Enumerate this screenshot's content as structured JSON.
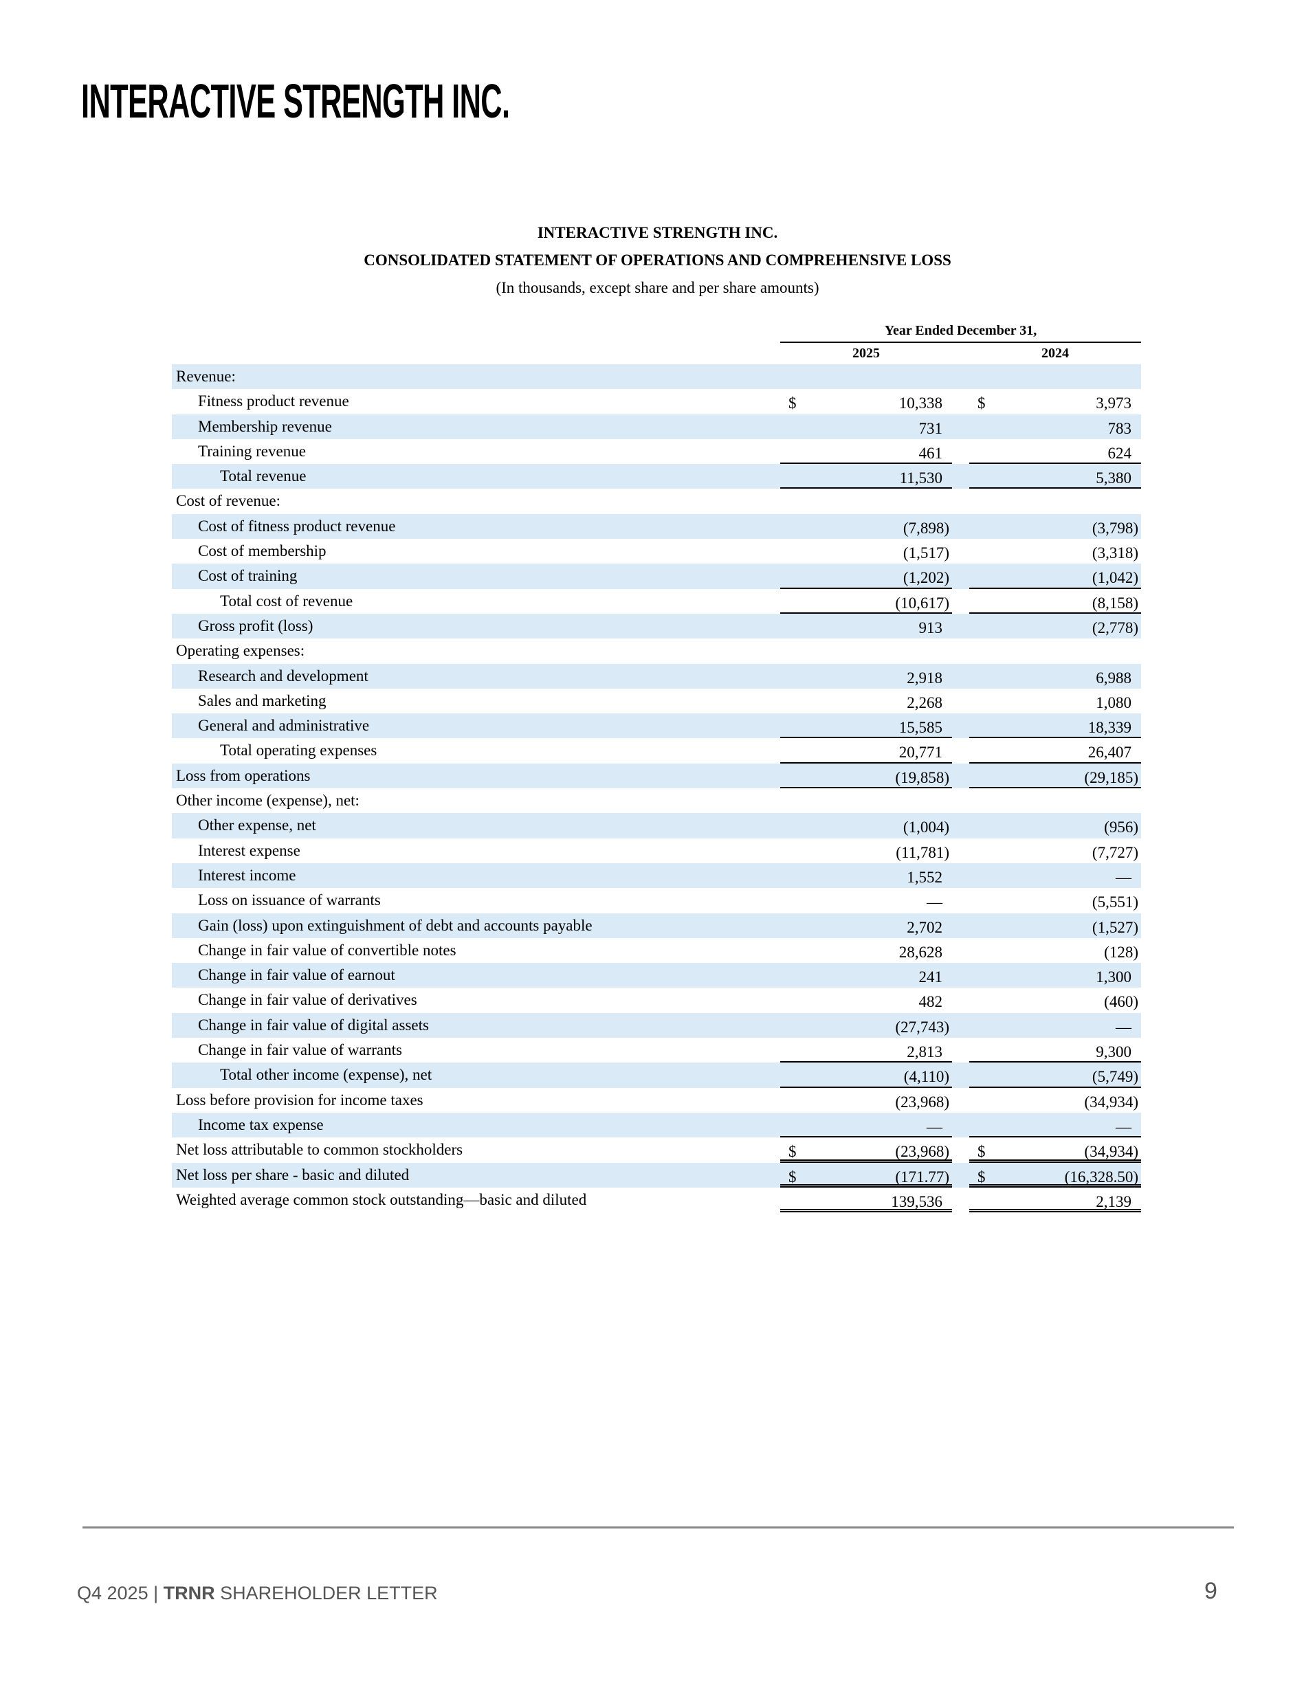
{
  "logo_text": "INTERACTIVE STRENGTH INC.",
  "title": {
    "company": "INTERACTIVE STRENGTH INC.",
    "statement": "CONSOLIDATED STATEMENT OF OPERATIONS AND COMPREHENSIVE LOSS",
    "units": "(In thousands, except share and per share amounts)"
  },
  "header": {
    "period": "Year Ended December 31,",
    "col1": "2025",
    "col2": "2024"
  },
  "rows": [
    {
      "label": "Revenue:",
      "indent": 0,
      "v1": "",
      "v2": ""
    },
    {
      "label": "Fitness product revenue",
      "indent": 1,
      "dollar": true,
      "v1": "10,338",
      "v2": "3,973"
    },
    {
      "label": "Membership revenue",
      "indent": 1,
      "v1": "731",
      "v2": "783"
    },
    {
      "label": "Training revenue",
      "indent": 1,
      "v1": "461",
      "v2": "624",
      "border": "b1"
    },
    {
      "label": "Total revenue",
      "indent": 2,
      "v1": "11,530",
      "v2": "5,380",
      "border": "b1"
    },
    {
      "label": "Cost of revenue:",
      "indent": 0,
      "v1": "",
      "v2": ""
    },
    {
      "label": "Cost of fitness product revenue",
      "indent": 1,
      "v1": "(7,898)",
      "v2": "(3,798)"
    },
    {
      "label": "Cost of membership",
      "indent": 1,
      "v1": "(1,517)",
      "v2": "(3,318)"
    },
    {
      "label": "Cost of training",
      "indent": 1,
      "v1": "(1,202)",
      "v2": "(1,042)",
      "border": "b1"
    },
    {
      "label": "Total cost of revenue",
      "indent": 2,
      "v1": "(10,617)",
      "v2": "(8,158)",
      "border": "b1"
    },
    {
      "label": "Gross profit (loss)",
      "indent": 1,
      "v1": "913",
      "v2": "(2,778)"
    },
    {
      "label": "Operating expenses:",
      "indent": 0,
      "v1": "",
      "v2": ""
    },
    {
      "label": "Research and development",
      "indent": 1,
      "v1": "2,918",
      "v2": "6,988"
    },
    {
      "label": "Sales and marketing",
      "indent": 1,
      "v1": "2,268",
      "v2": "1,080"
    },
    {
      "label": "General and administrative",
      "indent": 1,
      "v1": "15,585",
      "v2": "18,339",
      "border": "b1"
    },
    {
      "label": "Total operating expenses",
      "indent": 2,
      "v1": "20,771",
      "v2": "26,407",
      "border": "b1"
    },
    {
      "label": "Loss from operations",
      "indent": 0,
      "v1": "(19,858)",
      "v2": "(29,185)",
      "border": "b1"
    },
    {
      "label": "Other income (expense), net:",
      "indent": 0,
      "v1": "",
      "v2": ""
    },
    {
      "label": "Other expense, net",
      "indent": 1,
      "v1": "(1,004)",
      "v2": "(956)"
    },
    {
      "label": "Interest expense",
      "indent": 1,
      "v1": "(11,781)",
      "v2": "(7,727)"
    },
    {
      "label": "Interest income",
      "indent": 1,
      "v1": "1,552",
      "v2": "—"
    },
    {
      "label": "Loss on issuance of warrants",
      "indent": 1,
      "v1": "—",
      "v2": "(5,551)"
    },
    {
      "label": "Gain (loss) upon extinguishment of debt and accounts payable",
      "indent": 1,
      "v1": "2,702",
      "v2": "(1,527)"
    },
    {
      "label": "Change in fair value of convertible notes",
      "indent": 1,
      "v1": "28,628",
      "v2": "(128)"
    },
    {
      "label": "Change in fair value of earnout",
      "indent": 1,
      "v1": "241",
      "v2": "1,300"
    },
    {
      "label": "Change in fair value of derivatives",
      "indent": 1,
      "v1": "482",
      "v2": "(460)"
    },
    {
      "label": "Change in fair value of digital assets",
      "indent": 1,
      "v1": "(27,743)",
      "v2": "—"
    },
    {
      "label": "Change in fair value of warrants",
      "indent": 1,
      "v1": "2,813",
      "v2": "9,300",
      "border": "b1"
    },
    {
      "label": "Total other income (expense), net",
      "indent": 2,
      "v1": "(4,110)",
      "v2": "(5,749)",
      "border": "b1"
    },
    {
      "label": "Loss before provision for income taxes",
      "indent": 0,
      "v1": "(23,968)",
      "v2": "(34,934)"
    },
    {
      "label": "Income tax expense",
      "indent": 1,
      "v1": "—",
      "v2": "—",
      "border": "b1"
    },
    {
      "label": "Net loss attributable to common stockholders",
      "indent": 0,
      "dollar": true,
      "v1": "(23,968)",
      "v2": "(34,934)",
      "border": "b2"
    },
    {
      "label": "Net loss per share - basic and diluted",
      "indent": 0,
      "dollar": true,
      "v1": "(171.77)",
      "v2": "(16,328.50)",
      "border": "b2"
    },
    {
      "label": "Weighted average common stock outstanding—basic and diluted",
      "indent": 0,
      "v1": "139,536",
      "v2": "2,139",
      "border": "b2"
    }
  ],
  "dollar_sign": "$",
  "footer": {
    "prefix": "Q4 2025 | ",
    "ticker": "TRNR",
    "suffix": " SHAREHOLDER LETTER",
    "page": "9"
  },
  "colors": {
    "row_shade": "#daeaf6",
    "footer_text": "#555555"
  }
}
